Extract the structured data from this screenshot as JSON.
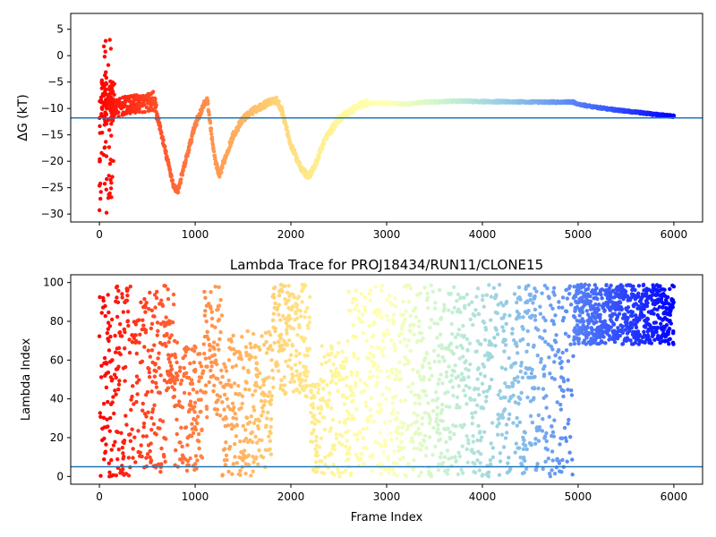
{
  "chart_data": [
    {
      "type": "scatter",
      "title": "",
      "xlabel": "",
      "ylabel": "ΔG (kT)",
      "xlim": [
        -300,
        6300
      ],
      "ylim": [
        -31.5,
        8
      ],
      "xticks": [
        0,
        1000,
        2000,
        3000,
        4000,
        5000,
        6000
      ],
      "xtick_labels": [
        "0",
        "1000",
        "2000",
        "3000",
        "4000",
        "5000",
        "6000"
      ],
      "yticks": [
        5,
        0,
        -5,
        -10,
        -15,
        -20,
        -25,
        -30
      ],
      "ytick_labels": [
        "5",
        "0",
        "−5",
        "−10",
        "−15",
        "−20",
        "−25",
        "−30"
      ],
      "hline": -11.8,
      "hline_color": "#1f77b4",
      "colormap": "rainbow (reversed: red at frame 0, violet at frame 6000)",
      "grid": false,
      "trace": {
        "x": [
          0,
          50,
          80,
          100,
          150,
          200,
          250,
          300,
          400,
          500,
          560,
          600,
          700,
          780,
          820,
          900,
          1000,
          1050,
          1100,
          1130,
          1150,
          1200,
          1250,
          1300,
          1400,
          1500,
          1600,
          1700,
          1800,
          1850,
          1900,
          2000,
          2100,
          2180,
          2250,
          2350,
          2500,
          2700,
          2800,
          3000,
          3200,
          3400,
          3600,
          3800,
          4000,
          4200,
          4500,
          4800,
          4950,
          5000,
          5200,
          5400,
          5600,
          5800,
          6000
        ],
        "y": [
          -9,
          -10,
          -11,
          -10,
          -10,
          -10,
          -9.5,
          -9.5,
          -9,
          -9,
          -8.5,
          -11,
          -19,
          -25,
          -25.5,
          -20,
          -13,
          -11,
          -9,
          -8.5,
          -12,
          -19,
          -23,
          -20,
          -15,
          -12,
          -10.5,
          -9.5,
          -8.5,
          -8.5,
          -10,
          -17,
          -21,
          -23,
          -21,
          -16,
          -12,
          -9.5,
          -9,
          -9,
          -9.2,
          -8.8,
          -8.7,
          -8.6,
          -8.7,
          -8.7,
          -8.8,
          -8.8,
          -8.8,
          -9.2,
          -9.8,
          -10.3,
          -10.7,
          -11.1,
          -11.5
        ]
      },
      "early_scatter": {
        "x_range": [
          0,
          150
        ],
        "y_range": [
          -30,
          3.5
        ]
      }
    },
    {
      "type": "scatter",
      "title": "Lambda Trace for PROJ18434/RUN11/CLONE15",
      "xlabel": "Frame Index",
      "ylabel": "Lambda Index",
      "xlim": [
        -300,
        6300
      ],
      "ylim": [
        -4,
        104
      ],
      "xticks": [
        0,
        1000,
        2000,
        3000,
        4000,
        5000,
        6000
      ],
      "xtick_labels": [
        "0",
        "1000",
        "2000",
        "3000",
        "4000",
        "5000",
        "6000"
      ],
      "yticks": [
        0,
        20,
        40,
        60,
        80,
        100
      ],
      "ytick_labels": [
        "0",
        "20",
        "40",
        "60",
        "80",
        "100"
      ],
      "hline": 5,
      "hline_color": "#1f77b4",
      "colormap": "rainbow (reversed: red at frame 0, violet at frame 6000)",
      "grid": false,
      "regions": [
        {
          "x_from": 0,
          "x_to": 4950,
          "lambda_range": [
            0,
            99
          ],
          "density": "sparse uniform with gaps"
        },
        {
          "x_from": 4950,
          "x_to": 6000,
          "lambda_range": [
            68,
            99
          ],
          "density": "dense"
        }
      ]
    }
  ]
}
